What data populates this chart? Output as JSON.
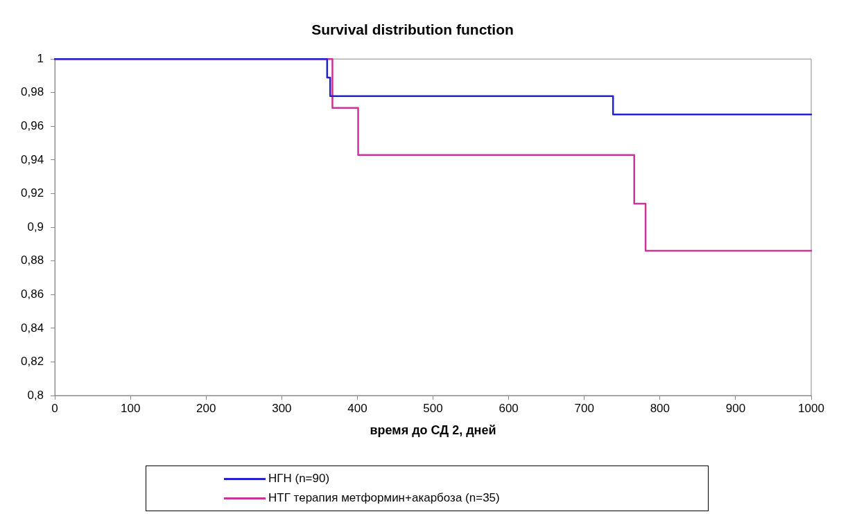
{
  "chart_data": {
    "type": "step",
    "title": "Survival distribution function",
    "xlabel": "время до СД 2, дней",
    "xlim": [
      0,
      1000
    ],
    "xticks": [
      0,
      100,
      200,
      300,
      400,
      500,
      600,
      700,
      800,
      900,
      1000
    ],
    "ylim": [
      0.8,
      1
    ],
    "yticks": [
      {
        "value": 0.8,
        "label": "0,8"
      },
      {
        "value": 0.82,
        "label": "0,82"
      },
      {
        "value": 0.84,
        "label": "0,84"
      },
      {
        "value": 0.86,
        "label": "0,86"
      },
      {
        "value": 0.88,
        "label": "0,88"
      },
      {
        "value": 0.9,
        "label": "0,9"
      },
      {
        "value": 0.92,
        "label": "0,92"
      },
      {
        "value": 0.94,
        "label": "0,94"
      },
      {
        "value": 0.96,
        "label": "0,96"
      },
      {
        "value": 0.98,
        "label": "0,98"
      },
      {
        "value": 1,
        "label": "1"
      }
    ],
    "grid": false,
    "legend": "bottom",
    "series": [
      {
        "name": "НГН (n=90)",
        "color": "#2222cc",
        "x": [
          0,
          360,
          364,
          738,
          1000
        ],
        "values": [
          1,
          0.989,
          0.978,
          0.967,
          0.967
        ]
      },
      {
        "name": "НТГ терапия метформин+акарбоза (n=35)",
        "color": "#cc3399",
        "x": [
          0,
          367,
          401,
          766,
          781,
          1000
        ],
        "values": [
          1,
          0.971,
          0.943,
          0.914,
          0.886,
          0.886
        ]
      }
    ]
  }
}
